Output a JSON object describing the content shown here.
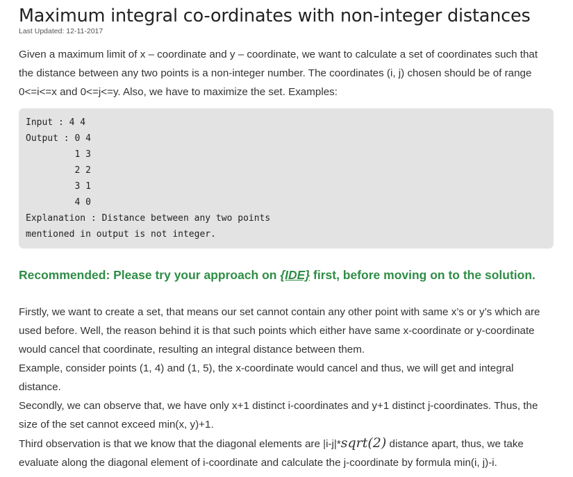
{
  "article": {
    "title": "Maximum integral co-ordinates with non-integer distances",
    "last_updated": "Last Updated: 12-11-2017",
    "intro": [
      "Given a maximum limit of x – coordinate and y – coordinate, we want to calculate a set of coordinates such that",
      "the distance between any two points is a non-integer number. The coordinates (i, j) chosen should be of range",
      "0<=i<=x and 0<=j<=y. Also, we have to maximize the set. Examples:"
    ],
    "example_code": [
      "Input : 4 4",
      "Output : 0 4",
      "         1 3",
      "         2 2",
      "         3 1",
      "         4 0",
      "Explanation : Distance between any two points",
      "mentioned in output is not integer."
    ],
    "recommended": {
      "prefix": "Recommended: Please try your approach on ",
      "link": "{IDE}",
      "suffix": " first, before moving on to the solution."
    },
    "body": [
      "Firstly, we want to create a set, that means our set cannot contain any other point with same x’s or y’s which are",
      "used before. Well, the reason behind it is that such points which either have same x-coordinate or y-coordinate",
      "would cancel that coordinate, resulting an integral distance between them.",
      "Example, consider points (1, 4) and (1, 5), the x-coordinate would cancel and thus, we will get and integral",
      "distance.",
      "Secondly, we can observe that, we have only x+1 distinct i-coordinates and y+1 distinct j-coordinates. Thus, the",
      "size of the set cannot exceed min(x, y)+1."
    ],
    "third_obs": {
      "before": "Third observation is that we know that the diagonal elements are |i-j|*",
      "math": "sqrt(2)",
      "after": " distance apart, thus, we take"
    },
    "last_line": "evaluate along the diagonal element of i-coordinate and calculate the j-coordinate by formula min(i, j)-i."
  }
}
